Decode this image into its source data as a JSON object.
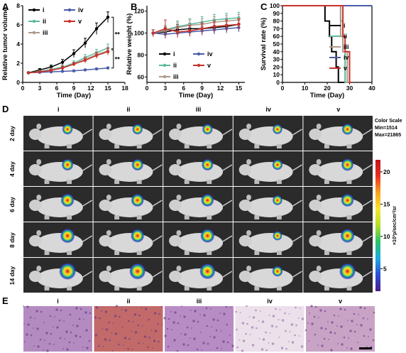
{
  "panel_labels": {
    "A": "A",
    "B": "B",
    "C": "C",
    "D": "D",
    "E": "E"
  },
  "colors": {
    "i": "#000000",
    "ii": "#5cb89e",
    "iii": "#b09a8a",
    "iv": "#4a5ba8",
    "v": "#c8322b"
  },
  "chart_data": [
    {
      "panel": "A",
      "type": "line",
      "xlabel": "Time (Day)",
      "ylabel": "Relative tumor volume",
      "xlim": [
        0,
        18
      ],
      "ylim": [
        0,
        8
      ],
      "xticks": [
        0,
        3,
        6,
        9,
        12,
        15,
        18
      ],
      "yticks": [
        0,
        2,
        4,
        6,
        8
      ],
      "x": [
        1,
        3,
        5,
        7,
        9,
        11,
        13,
        15
      ],
      "legend_placement": "top-left",
      "annotations": [
        "**",
        "**"
      ],
      "series": [
        {
          "name": "i",
          "values": [
            1.0,
            1.3,
            1.6,
            2.1,
            3.0,
            4.1,
            5.6,
            6.8
          ],
          "err": [
            0.1,
            0.15,
            0.2,
            0.3,
            0.4,
            0.5,
            0.6,
            0.55
          ]
        },
        {
          "name": "ii",
          "values": [
            1.0,
            1.15,
            1.35,
            1.6,
            2.0,
            2.6,
            3.1,
            3.6
          ],
          "err": [
            0.1,
            0.1,
            0.15,
            0.2,
            0.25,
            0.3,
            0.35,
            0.4
          ]
        },
        {
          "name": "iii",
          "values": [
            1.0,
            1.1,
            1.3,
            1.5,
            1.9,
            2.4,
            2.9,
            3.3
          ],
          "err": [
            0.1,
            0.1,
            0.15,
            0.2,
            0.2,
            0.3,
            0.3,
            0.35
          ]
        },
        {
          "name": "iv",
          "values": [
            1.0,
            1.05,
            1.1,
            1.15,
            1.2,
            1.3,
            1.4,
            1.5
          ],
          "err": [
            0.05,
            0.05,
            0.05,
            0.08,
            0.08,
            0.1,
            0.1,
            0.1
          ]
        },
        {
          "name": "v",
          "values": [
            1.0,
            1.1,
            1.25,
            1.5,
            1.9,
            2.3,
            2.8,
            3.2
          ],
          "err": [
            0.1,
            0.1,
            0.15,
            0.2,
            0.2,
            0.25,
            0.3,
            0.35
          ]
        }
      ]
    },
    {
      "panel": "B",
      "type": "line",
      "xlabel": "Time (Day)",
      "ylabel": "Relative weight (%)",
      "xlim": [
        0,
        16
      ],
      "ylim": [
        55,
        125
      ],
      "xticks": [
        0,
        3,
        6,
        9,
        12,
        15
      ],
      "yticks": [
        60,
        80,
        100,
        120
      ],
      "x": [
        1,
        3,
        5,
        7,
        9,
        11,
        13,
        15
      ],
      "legend_placement": "bottom",
      "series": [
        {
          "name": "i",
          "values": [
            100,
            101,
            103,
            104,
            104,
            105,
            106,
            108
          ],
          "err": [
            3,
            4,
            5,
            5,
            5,
            5,
            5,
            5
          ]
        },
        {
          "name": "ii",
          "values": [
            100,
            103,
            106,
            108,
            110,
            112,
            113,
            114
          ],
          "err": [
            3,
            4,
            5,
            5,
            5,
            5,
            5,
            5
          ]
        },
        {
          "name": "iii",
          "values": [
            100,
            102,
            105,
            107,
            108,
            110,
            111,
            112
          ],
          "err": [
            3,
            4,
            5,
            5,
            5,
            5,
            5,
            5
          ]
        },
        {
          "name": "iv",
          "values": [
            100,
            99,
            100,
            101,
            102,
            103,
            104,
            105
          ],
          "err": [
            3,
            4,
            4,
            4,
            4,
            4,
            4,
            4
          ]
        },
        {
          "name": "v",
          "values": [
            100,
            104,
            101,
            102,
            104,
            106,
            107,
            108
          ],
          "err": [
            3,
            8,
            5,
            5,
            5,
            5,
            5,
            5
          ]
        }
      ]
    },
    {
      "panel": "C",
      "type": "line",
      "xlabel": "Time (Day)",
      "ylabel": "Survival rate (%)",
      "xlim": [
        0,
        40
      ],
      "ylim": [
        0,
        100
      ],
      "xticks": [
        0,
        10,
        20,
        30,
        40
      ],
      "yticks": [
        0,
        10,
        20,
        30,
        40,
        50,
        60,
        70,
        80,
        90,
        100
      ],
      "legend_placement": "right",
      "series": [
        {
          "name": "i",
          "steps": [
            [
              0,
              100
            ],
            [
              19,
              100
            ],
            [
              19,
              80
            ],
            [
              21,
              80
            ],
            [
              21,
              60
            ],
            [
              22,
              60
            ],
            [
              22,
              40
            ],
            [
              24,
              40
            ],
            [
              24,
              20
            ],
            [
              25,
              20
            ],
            [
              25,
              0
            ],
            [
              28,
              0
            ]
          ]
        },
        {
          "name": "ii",
          "steps": [
            [
              0,
              100
            ],
            [
              26,
              100
            ],
            [
              26,
              80
            ],
            [
              27,
              80
            ],
            [
              27,
              40
            ],
            [
              28,
              40
            ],
            [
              28,
              0
            ],
            [
              29,
              0
            ]
          ]
        },
        {
          "name": "iii",
          "steps": [
            [
              0,
              100
            ],
            [
              26,
              100
            ],
            [
              26,
              60
            ],
            [
              27,
              60
            ],
            [
              27,
              40
            ],
            [
              29,
              40
            ],
            [
              29,
              0
            ],
            [
              30,
              0
            ]
          ]
        },
        {
          "name": "iv",
          "steps": [
            [
              0,
              100
            ],
            [
              40,
              100
            ]
          ]
        },
        {
          "name": "v",
          "steps": [
            [
              0,
              100
            ],
            [
              27,
              100
            ],
            [
              27,
              60
            ],
            [
              28,
              60
            ],
            [
              28,
              40
            ],
            [
              30,
              40
            ],
            [
              30,
              0
            ],
            [
              31,
              0
            ]
          ]
        }
      ]
    },
    {
      "panel": "D",
      "type": "heatmap",
      "columns": [
        "i",
        "ii",
        "iii",
        "iv",
        "v"
      ],
      "rows": [
        "2 day",
        "4 day",
        "6 day",
        "8 day",
        "14 day"
      ],
      "colorbar": {
        "title_lines": [
          "Color Scale",
          "Min=1514",
          "Max=21865"
        ],
        "ticks": [
          5,
          10,
          15,
          20
        ],
        "label": "×10³p/sec/cm²/sr",
        "colors": [
          "#4b1d8c",
          "#2a4fd8",
          "#1fa9e0",
          "#27c36a",
          "#b4e02a",
          "#f5e62e",
          "#f7a21f",
          "#e8321f",
          "#c0141b"
        ]
      },
      "signal": [
        [
          0.45,
          0.45,
          0.45,
          0.4,
          0.5
        ],
        [
          0.55,
          0.55,
          0.55,
          0.45,
          0.6
        ],
        [
          0.7,
          0.65,
          0.65,
          0.4,
          0.65
        ],
        [
          0.8,
          0.7,
          0.75,
          0.35,
          0.75
        ],
        [
          1.0,
          0.95,
          0.9,
          0.45,
          0.95
        ]
      ]
    },
    {
      "panel": "E",
      "type": "table",
      "columns": [
        "i",
        "ii",
        "iii",
        "iv",
        "v"
      ],
      "tissue_tone": [
        "#b48bc0",
        "#c26a6a",
        "#b78cc4",
        "#ece0ea",
        "#c9a3c6"
      ]
    }
  ]
}
